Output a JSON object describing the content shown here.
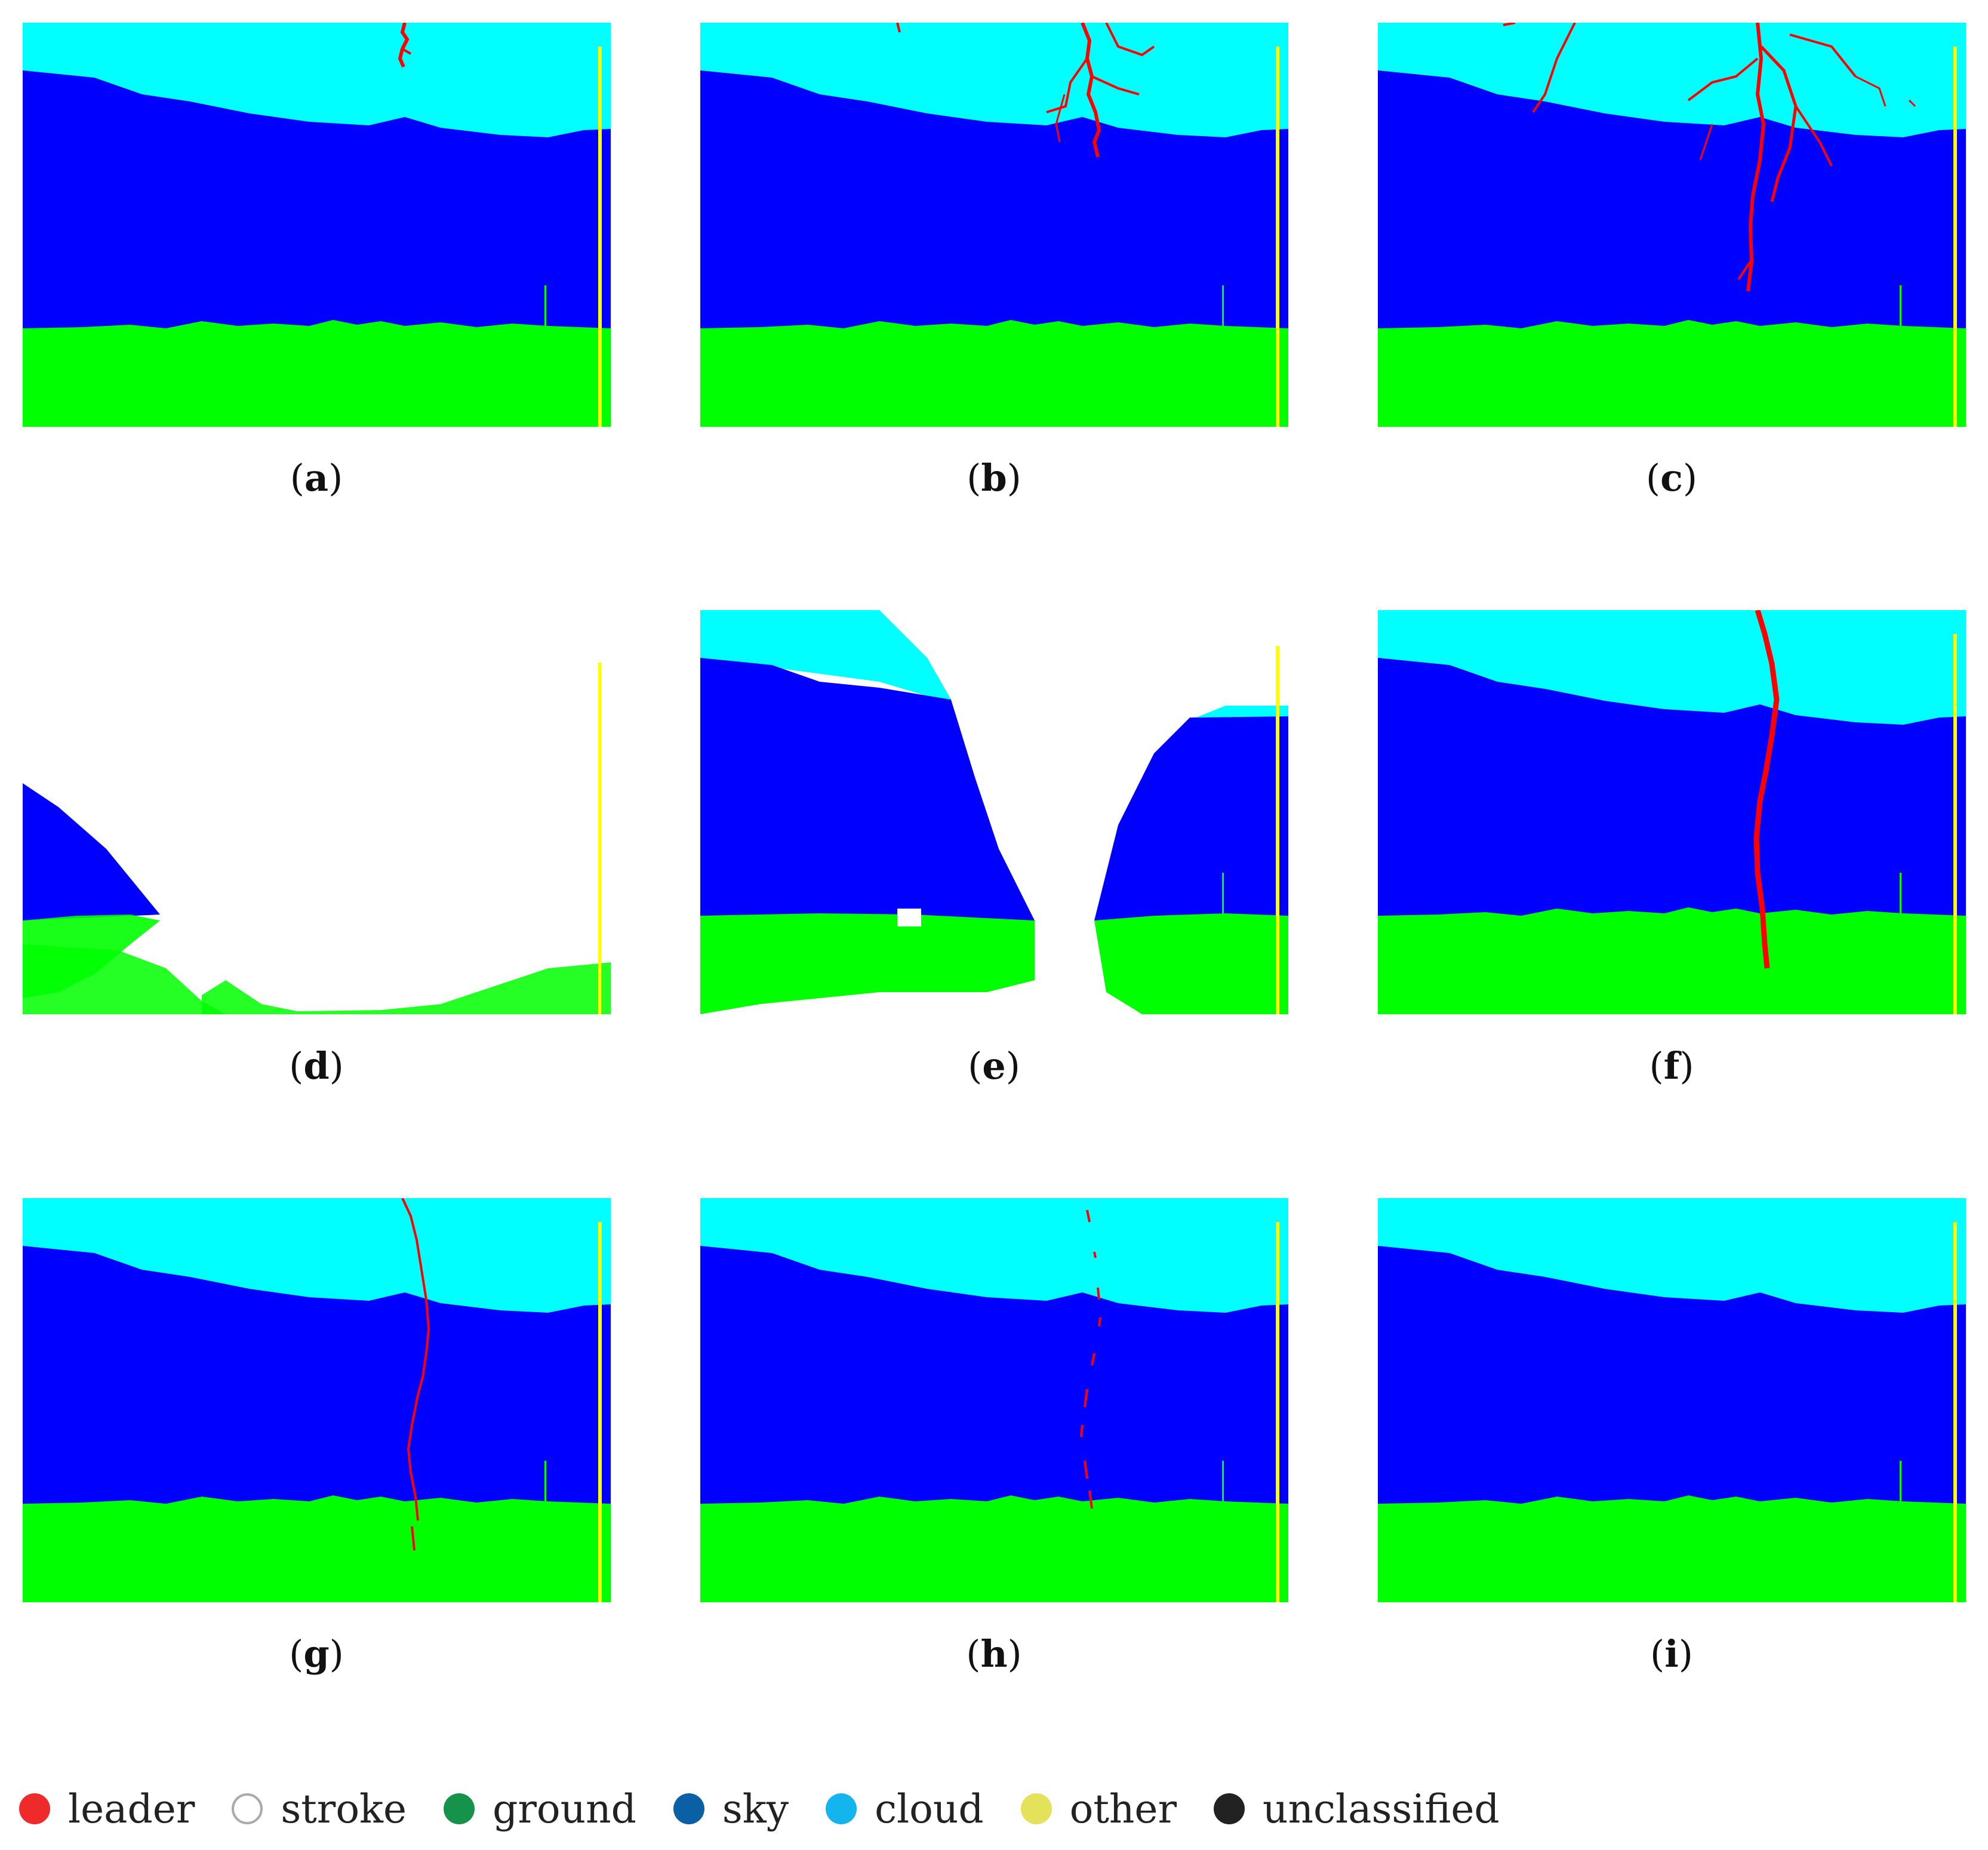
{
  "figure": {
    "colors": {
      "cloud": "#00ffff",
      "sky": "#0000ff",
      "ground": "#00ff00",
      "leader": "#ff0000",
      "other": "#ffff00",
      "stroke": "#ffffff"
    },
    "panels": [
      {
        "id": "a",
        "open": "(",
        "letter": "a",
        "close": ")"
      },
      {
        "id": "b",
        "open": "(",
        "letter": "b",
        "close": ")"
      },
      {
        "id": "c",
        "open": "(",
        "letter": "c",
        "close": ")"
      },
      {
        "id": "d",
        "open": "(",
        "letter": "d",
        "close": ")"
      },
      {
        "id": "e",
        "open": "(",
        "letter": "e",
        "close": ")"
      },
      {
        "id": "f",
        "open": "(",
        "letter": "f",
        "close": ")"
      },
      {
        "id": "g",
        "open": "(",
        "letter": "g",
        "close": ")"
      },
      {
        "id": "h",
        "open": "(",
        "letter": "h",
        "close": ")"
      },
      {
        "id": "i",
        "open": "(",
        "letter": "i",
        "close": ")"
      }
    ]
  },
  "legend": [
    {
      "label": "leader",
      "color": "#ee2a2a",
      "hollow": false
    },
    {
      "label": "stroke",
      "color": "#ffffff",
      "hollow": true
    },
    {
      "label": "ground",
      "color": "#16934a",
      "hollow": false
    },
    {
      "label": "sky",
      "color": "#0b5fa5",
      "hollow": false
    },
    {
      "label": "cloud",
      "color": "#14b4ee",
      "hollow": false
    },
    {
      "label": "other",
      "color": "#e4e25a",
      "hollow": false
    },
    {
      "label": "unclassified",
      "color": "#222222",
      "hollow": false
    }
  ]
}
